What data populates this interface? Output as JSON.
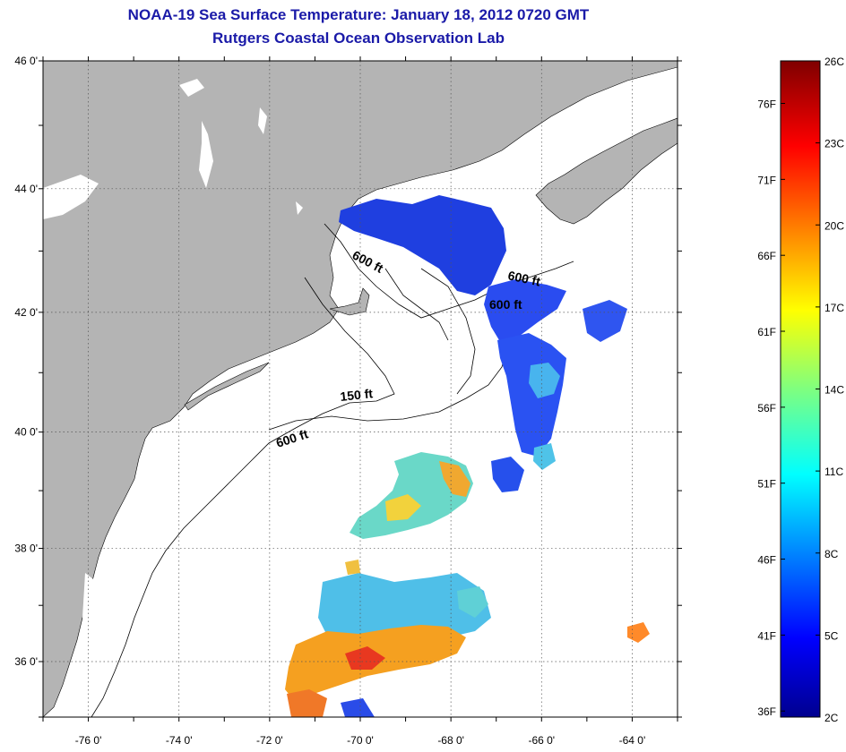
{
  "title": {
    "line1": "NOAA-19 Sea Surface Temperature:  January 18, 2012 0720 GMT",
    "line2": "Rutgers Coastal Ocean Observation Lab"
  },
  "map": {
    "lat_labels": [
      "46 0'",
      "44 0'",
      "42 0'",
      "40 0'",
      "38 0'",
      "36 0'"
    ],
    "lon_labels": [
      "-76 0'",
      "-74 0'",
      "-72 0'",
      "-70 0'",
      "-68 0'",
      "-66 0'",
      "-64 0'"
    ],
    "lat_range": [
      35,
      46
    ],
    "lon_range": [
      -77,
      -63
    ],
    "contour_labels": [
      "600 ft",
      "600 ft",
      "600 ft",
      "150 ft",
      "600 ft"
    ],
    "colors": {
      "land": "#b4b4b4",
      "ocean": "#ffffff",
      "grid": "#555555"
    }
  },
  "colorbar": {
    "fahrenheit_labels": [
      "76F",
      "71F",
      "66F",
      "61F",
      "56F",
      "51F",
      "46F",
      "41F",
      "36F"
    ],
    "celsius_labels": [
      "26C",
      "23C",
      "20C",
      "17C",
      "14C",
      "11C",
      "8C",
      "5C",
      "2C"
    ],
    "range_c": [
      2,
      26
    ],
    "colormap": "jet"
  }
}
